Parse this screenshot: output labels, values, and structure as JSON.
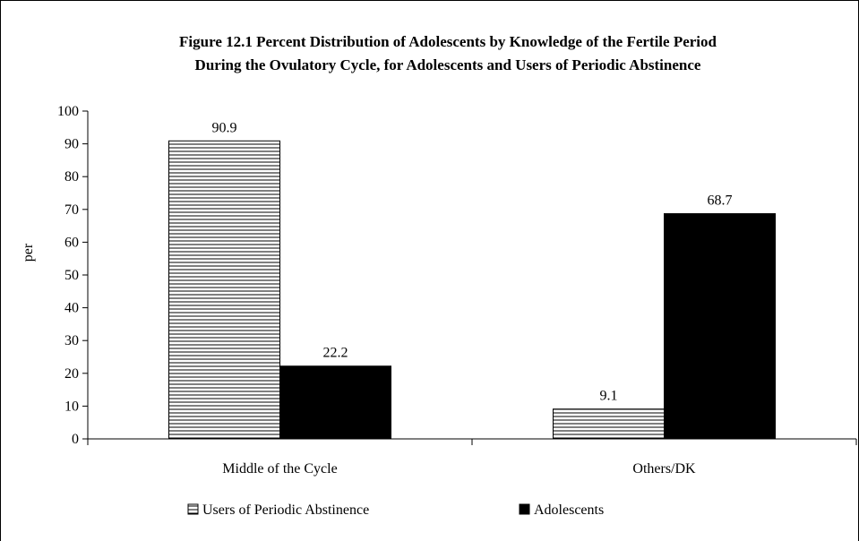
{
  "chart_data": {
    "type": "bar",
    "title": "Figure 12.1 Percent Distribution of Adolescents by Knowledge of the Fertile Period",
    "subtitle": "During the Ovulatory Cycle, for Adolescents and Users of Periodic Abstinence",
    "ylabel": "per",
    "xlabel": "",
    "ylim": [
      0,
      100
    ],
    "yticks": [
      "0",
      "10",
      "20",
      "30",
      "40",
      "50",
      "60",
      "70",
      "80",
      "90",
      "100"
    ],
    "categories": [
      "Middle of the Cycle",
      "Others/DK"
    ],
    "series": [
      {
        "name": "Users of Periodic Abstinence",
        "values": [
          90.9,
          9.1
        ],
        "labels": [
          "90.9",
          "9.1"
        ],
        "fill": "hatch"
      },
      {
        "name": "Adolescents",
        "values": [
          22.2,
          68.7
        ],
        "labels": [
          "22.2",
          "68.7"
        ],
        "fill": "#000000"
      }
    ],
    "grid": false,
    "legend_position": "bottom"
  }
}
